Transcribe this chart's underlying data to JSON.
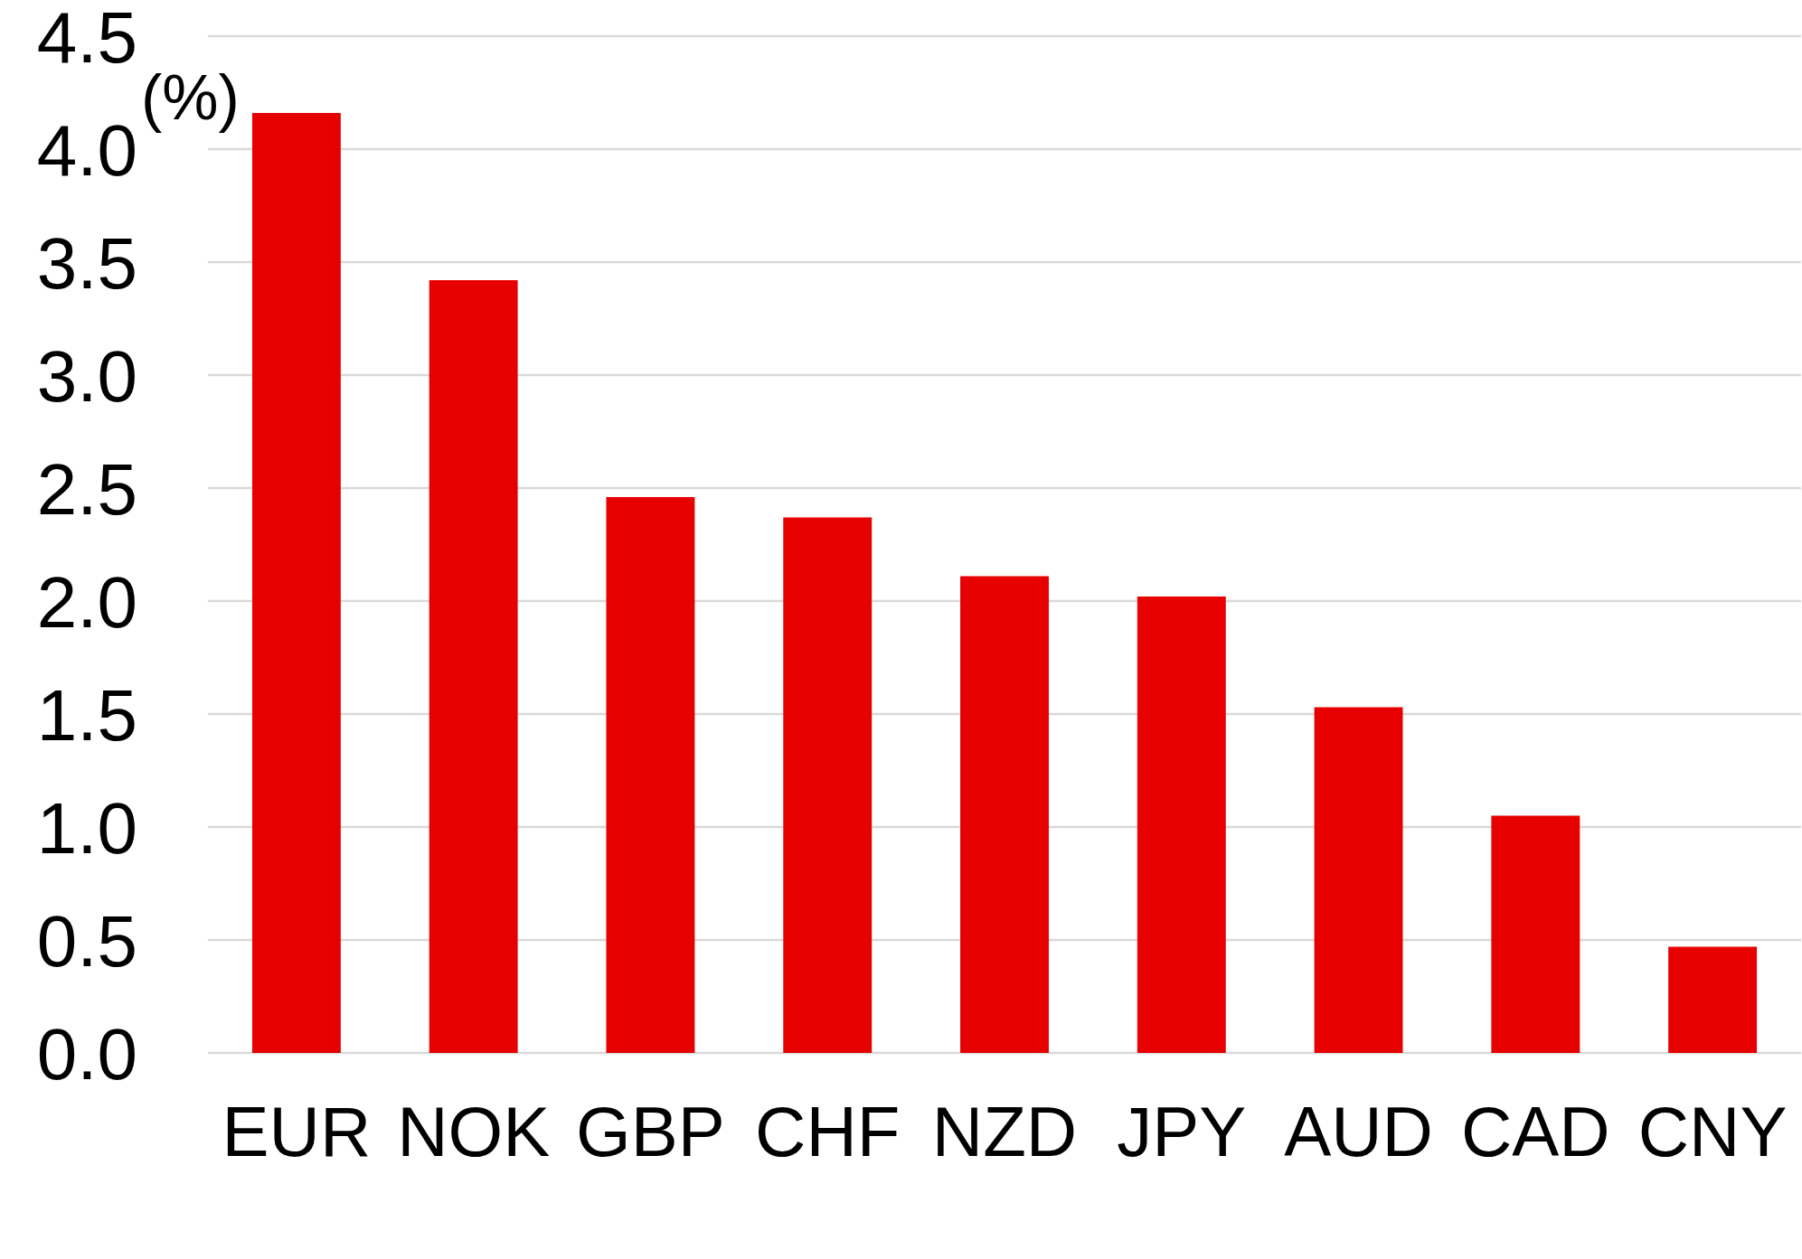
{
  "chart_data": {
    "type": "bar",
    "ylabel": "(%)",
    "categories": [
      "EUR",
      "NOK",
      "GBP",
      "CHF",
      "NZD",
      "JPY",
      "AUD",
      "CAD",
      "CNY"
    ],
    "values": [
      4.16,
      3.42,
      2.46,
      2.37,
      2.11,
      2.02,
      1.53,
      1.05,
      0.47
    ],
    "color": "#e60000",
    "ylim": [
      0,
      4.5
    ],
    "yticks": [
      {
        "value": 0,
        "label": "0.0"
      },
      0.5,
      {
        "value": 1,
        "label": "1.0"
      },
      1.5,
      {
        "value": 2,
        "label": "2.0"
      },
      2.5,
      {
        "value": 3,
        "label": "3.0"
      },
      3.5,
      {
        "value": 4,
        "label": "4.0"
      },
      4.5
    ],
    "grid": "y"
  }
}
